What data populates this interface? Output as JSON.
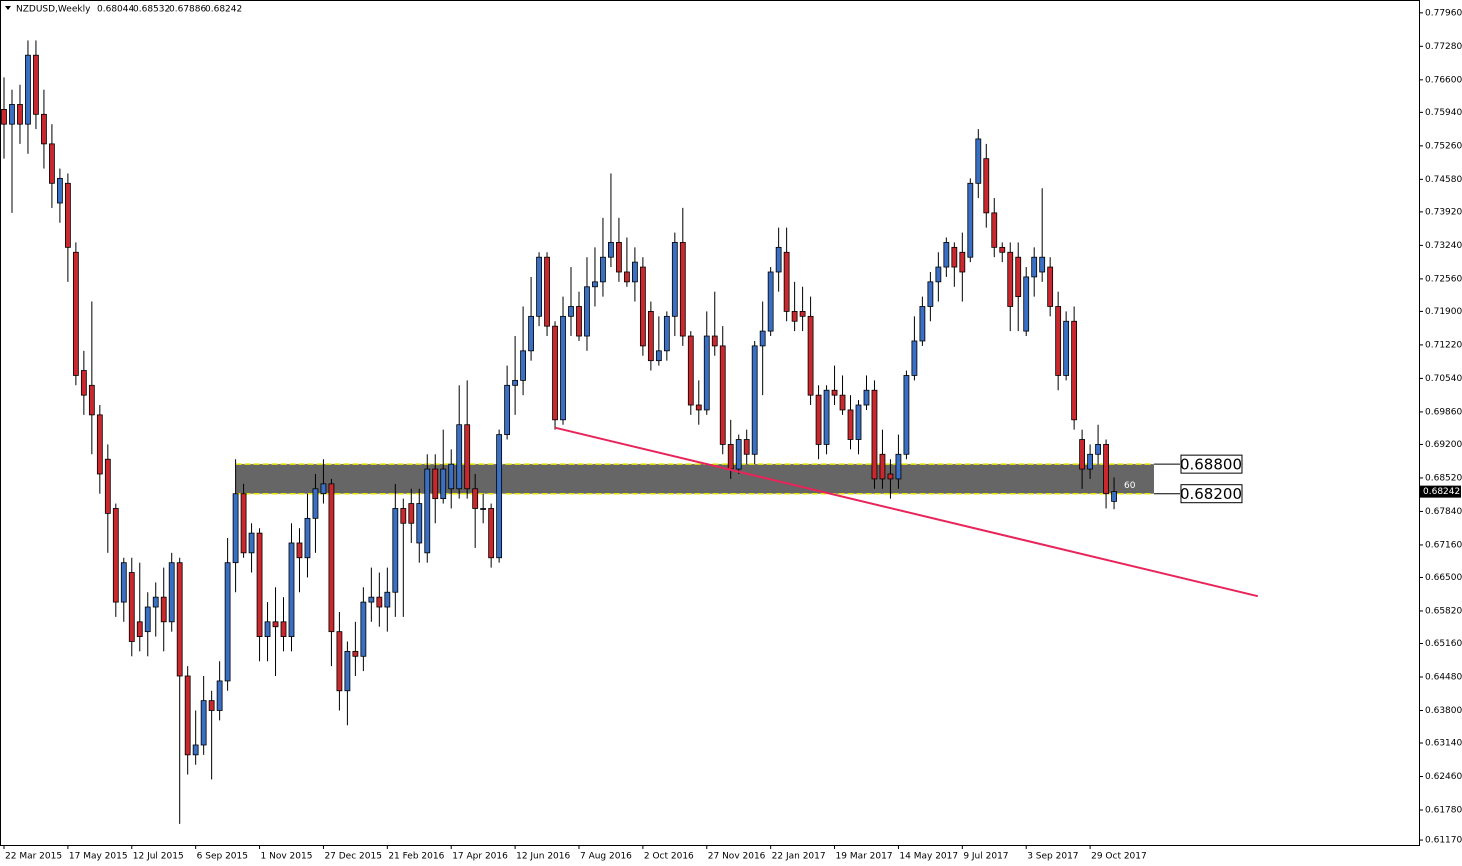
{
  "chart_data": {
    "type": "candlestick",
    "title": "NZDUSD,Weekly",
    "up_color": "#3a6fc4",
    "down_color": "#c8282e",
    "categories": [
      "22 Mar 2015",
      null,
      null,
      null,
      null,
      null,
      null,
      null,
      "17 May 2015",
      null,
      null,
      null,
      null,
      null,
      null,
      null,
      "12 Jul 2015",
      null,
      null,
      null,
      null,
      null,
      null,
      null,
      "6 Sep 2015",
      null,
      null,
      null,
      null,
      null,
      null,
      null,
      "1 Nov 2015",
      null,
      null,
      null,
      null,
      null,
      null,
      null,
      "27 Dec 2015",
      null,
      null,
      null,
      null,
      null,
      null,
      null,
      "21 Feb 2016",
      null,
      null,
      null,
      null,
      null,
      null,
      null,
      "17 Apr 2016",
      null,
      null,
      null,
      null,
      null,
      null,
      null,
      "12 Jun 2016",
      null,
      null,
      null,
      null,
      null,
      null,
      null,
      "7 Aug 2016",
      null,
      null,
      null,
      null,
      null,
      null,
      null,
      "2 Oct 2016",
      null,
      null,
      null,
      null,
      null,
      null,
      null,
      "27 Nov 2016",
      null,
      null,
      null,
      null,
      null,
      null,
      null,
      "22 Jan 2017",
      null,
      null,
      null,
      null,
      null,
      null,
      null,
      "19 Mar 2017",
      null,
      null,
      null,
      null,
      null,
      null,
      null,
      "14 May 2017",
      null,
      null,
      null,
      null,
      null,
      null,
      null,
      "9 Jul 2017",
      null,
      null,
      null,
      null,
      null,
      null,
      null,
      "3 Sep 2017",
      null,
      null,
      null,
      null,
      null,
      null,
      null,
      "29 Oct 2017",
      null,
      null,
      null
    ],
    "open": [
      0.76,
      0.757,
      0.761,
      0.757,
      0.771,
      0.759,
      0.753,
      0.741,
      0.745,
      0.731,
      0.707,
      0.704,
      0.698,
      0.689,
      0.679,
      0.66,
      0.666,
      0.656,
      0.654,
      0.659,
      0.661,
      0.656,
      0.668,
      0.645,
      0.629,
      0.631,
      0.64,
      0.638,
      0.644,
      0.668,
      0.682,
      0.67,
      0.674,
      0.653,
      0.656,
      0.656,
      0.653,
      0.672,
      0.669,
      0.677,
      0.682,
      0.684,
      0.654,
      0.642,
      0.65,
      0.649,
      0.66,
      0.661,
      0.659,
      0.662,
      0.679,
      0.68,
      0.672,
      0.67,
      0.687,
      0.681,
      0.683,
      0.683,
      0.696,
      0.683,
      0.679,
      0.679,
      0.669,
      0.694,
      0.704,
      0.705,
      0.711,
      0.718,
      0.73,
      0.716,
      0.697,
      0.718,
      0.72,
      0.714,
      0.724,
      0.725,
      0.73,
      0.733,
      0.727,
      0.725,
      0.728,
      0.719,
      0.709,
      0.711,
      0.718,
      0.733,
      0.714,
      0.7,
      0.699,
      0.714,
      0.712,
      0.692,
      0.687,
      0.693,
      0.69,
      0.712,
      0.715,
      0.727,
      0.731,
      0.719,
      0.719,
      0.718,
      0.702,
      0.692,
      0.703,
      0.702,
      0.699,
      0.693,
      0.7,
      0.703,
      0.69,
      0.686,
      0.685,
      0.69,
      0.706,
      0.713,
      0.72,
      0.725,
      0.728,
      0.732,
      0.731,
      0.73,
      0.745,
      0.75,
      0.739,
      0.732,
      0.731,
      0.73,
      0.715,
      0.726,
      0.727,
      0.728,
      0.72,
      0.706,
      0.717,
      0.693,
      0.687,
      0.69,
      0.692,
      0.68044
    ],
    "high": [
      0.7665,
      0.764,
      0.765,
      0.774,
      0.774,
      0.764,
      0.757,
      0.748,
      0.747,
      0.733,
      0.711,
      0.721,
      0.7,
      0.692,
      0.68,
      0.669,
      0.669,
      0.668,
      0.662,
      0.664,
      0.667,
      0.67,
      0.669,
      0.647,
      0.638,
      0.645,
      0.642,
      0.648,
      0.673,
      0.689,
      0.684,
      0.676,
      0.675,
      0.66,
      0.663,
      0.661,
      0.676,
      0.675,
      0.682,
      0.686,
      0.689,
      0.685,
      0.658,
      0.652,
      0.656,
      0.663,
      0.667,
      0.666,
      0.667,
      0.684,
      0.681,
      0.683,
      0.683,
      0.69,
      0.69,
      0.695,
      0.691,
      0.704,
      0.705,
      0.686,
      0.682,
      0.68,
      0.695,
      0.708,
      0.714,
      0.72,
      0.726,
      0.731,
      0.731,
      0.717,
      0.722,
      0.728,
      0.723,
      0.73,
      0.732,
      0.738,
      0.747,
      0.738,
      0.734,
      0.732,
      0.73,
      0.721,
      0.718,
      0.719,
      0.735,
      0.74,
      0.715,
      0.705,
      0.719,
      0.723,
      0.716,
      0.697,
      0.694,
      0.695,
      0.713,
      0.721,
      0.728,
      0.736,
      0.736,
      0.725,
      0.724,
      0.722,
      0.704,
      0.704,
      0.708,
      0.706,
      0.702,
      0.701,
      0.706,
      0.705,
      0.695,
      0.689,
      0.694,
      0.707,
      0.718,
      0.722,
      0.727,
      0.731,
      0.734,
      0.733,
      0.735,
      0.746,
      0.756,
      0.753,
      0.742,
      0.733,
      0.733,
      0.733,
      0.728,
      0.732,
      0.744,
      0.73,
      0.723,
      0.719,
      0.72,
      0.695,
      0.692,
      0.696,
      0.693,
      0.68532
    ],
    "low": [
      0.75,
      0.739,
      0.753,
      0.751,
      0.756,
      0.748,
      0.74,
      0.737,
      0.725,
      0.704,
      0.698,
      0.69,
      0.682,
      0.67,
      0.657,
      0.656,
      0.649,
      0.65,
      0.649,
      0.653,
      0.65,
      0.654,
      0.615,
      0.625,
      0.627,
      0.629,
      0.624,
      0.636,
      0.642,
      0.662,
      0.669,
      0.666,
      0.648,
      0.648,
      0.645,
      0.65,
      0.65,
      0.662,
      0.665,
      0.67,
      0.68,
      0.647,
      0.638,
      0.635,
      0.645,
      0.646,
      0.656,
      0.655,
      0.654,
      0.657,
      0.657,
      0.672,
      0.668,
      0.668,
      0.676,
      0.68,
      0.679,
      0.681,
      0.681,
      0.671,
      0.676,
      0.667,
      0.668,
      0.693,
      0.698,
      0.702,
      0.709,
      0.716,
      0.714,
      0.695,
      0.696,
      0.714,
      0.713,
      0.711,
      0.72,
      0.722,
      0.728,
      0.725,
      0.724,
      0.721,
      0.71,
      0.707,
      0.708,
      0.709,
      0.714,
      0.712,
      0.698,
      0.696,
      0.698,
      0.71,
      0.69,
      0.685,
      0.686,
      0.688,
      0.688,
      0.702,
      0.714,
      0.723,
      0.717,
      0.715,
      0.715,
      0.7,
      0.689,
      0.69,
      0.7,
      0.698,
      0.691,
      0.69,
      0.699,
      0.683,
      0.683,
      0.681,
      0.683,
      0.689,
      0.705,
      0.712,
      0.717,
      0.721,
      0.726,
      0.724,
      0.721,
      0.729,
      0.742,
      0.736,
      0.73,
      0.729,
      0.715,
      0.715,
      0.714,
      0.722,
      0.725,
      0.718,
      0.703,
      0.705,
      0.695,
      0.683,
      0.685,
      0.688,
      0.679,
      0.67886
    ],
    "close": [
      0.757,
      0.761,
      0.757,
      0.771,
      0.759,
      0.753,
      0.745,
      0.746,
      0.732,
      0.706,
      0.702,
      0.698,
      0.686,
      0.678,
      0.66,
      0.668,
      0.652,
      0.653,
      0.659,
      0.661,
      0.656,
      0.668,
      0.645,
      0.629,
      0.631,
      0.64,
      0.638,
      0.644,
      0.668,
      0.682,
      0.67,
      0.674,
      0.653,
      0.656,
      0.655,
      0.653,
      0.672,
      0.669,
      0.677,
      0.683,
      0.684,
      0.654,
      0.642,
      0.65,
      0.649,
      0.66,
      0.661,
      0.659,
      0.662,
      0.679,
      0.676,
      0.676,
      0.68,
      0.687,
      0.681,
      0.687,
      0.688,
      0.696,
      0.683,
      0.679,
      0.679,
      0.669,
      0.694,
      0.704,
      0.705,
      0.711,
      0.718,
      0.73,
      0.716,
      0.697,
      0.718,
      0.72,
      0.714,
      0.724,
      0.725,
      0.73,
      0.733,
      0.727,
      0.725,
      0.729,
      0.712,
      0.709,
      0.711,
      0.718,
      0.733,
      0.714,
      0.7,
      0.699,
      0.714,
      0.712,
      0.692,
      0.687,
      0.693,
      0.69,
      0.712,
      0.715,
      0.727,
      0.732,
      0.719,
      0.717,
      0.718,
      0.702,
      0.692,
      0.703,
      0.702,
      0.699,
      0.693,
      0.7,
      0.703,
      0.685,
      0.685,
      0.685,
      0.69,
      0.706,
      0.713,
      0.72,
      0.725,
      0.728,
      0.733,
      0.728,
      0.727,
      0.745,
      0.754,
      0.739,
      0.732,
      0.731,
      0.72,
      0.722,
      0.726,
      0.73,
      0.73,
      0.72,
      0.706,
      0.717,
      0.697,
      0.687,
      0.69,
      0.692,
      0.682,
      0.68242
    ],
    "ylim": [
      0.6107,
      0.782
    ],
    "yticks": [
      {
        "value": 0.7796,
        "label": "0.77960"
      },
      {
        "value": 0.7728,
        "label": "0.77280"
      },
      {
        "value": 0.766,
        "label": "0.76600"
      },
      {
        "value": 0.7594,
        "label": "0.75940"
      },
      {
        "value": 0.7526,
        "label": "0.75260"
      },
      {
        "value": 0.7458,
        "label": "0.74580"
      },
      {
        "value": 0.7392,
        "label": "0.73920"
      },
      {
        "value": 0.7324,
        "label": "0.73240"
      },
      {
        "value": 0.7256,
        "label": "0.72560"
      },
      {
        "value": 0.719,
        "label": "0.71900"
      },
      {
        "value": 0.7122,
        "label": "0.71220"
      },
      {
        "value": 0.7054,
        "label": "0.70540"
      },
      {
        "value": 0.6986,
        "label": "0.69860"
      },
      {
        "value": 0.692,
        "label": "0.69200"
      },
      {
        "value": 0.6852,
        "label": "0.68520"
      },
      {
        "value": 0.6784,
        "label": "0.67840"
      },
      {
        "value": 0.6716,
        "label": "0.67160"
      },
      {
        "value": 0.665,
        "label": "0.66500"
      },
      {
        "value": 0.6582,
        "label": "0.65820"
      },
      {
        "value": 0.6516,
        "label": "0.65160"
      },
      {
        "value": 0.6448,
        "label": "0.64480"
      },
      {
        "value": 0.638,
        "label": "0.63800"
      },
      {
        "value": 0.6314,
        "label": "0.63140"
      },
      {
        "value": 0.6246,
        "label": "0.62460"
      },
      {
        "value": 0.6178,
        "label": "0.61780"
      },
      {
        "value": 0.6117,
        "label": "0.61170"
      }
    ],
    "zone": {
      "high": {
        "value": 0.688,
        "label": "0.68800"
      },
      "low": {
        "value": 0.682,
        "label": "0.68200"
      },
      "label": "60",
      "x": [
        29,
        144
      ],
      "color": "#666666",
      "border_color": "#e6e600"
    },
    "trendline": {
      "x": [
        69,
        157
      ],
      "y": [
        0.6954,
        0.6612
      ],
      "color": "#e8245a"
    }
  }
}
